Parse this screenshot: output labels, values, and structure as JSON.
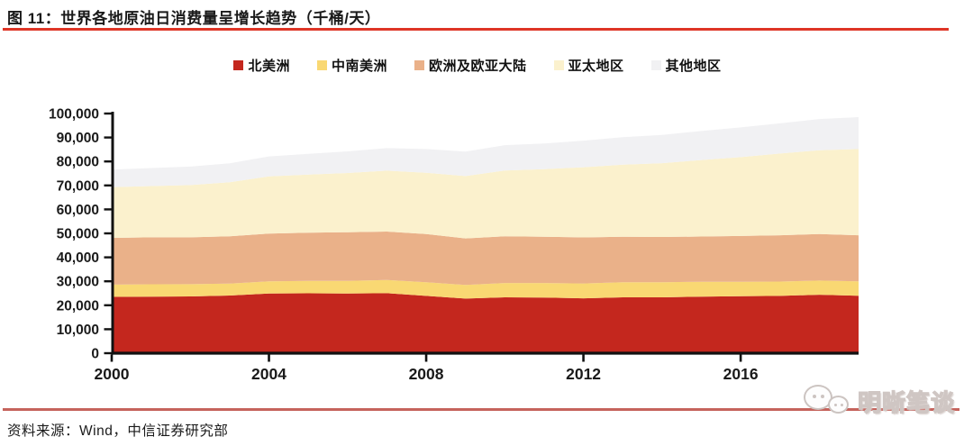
{
  "title": "图 11：世界各地原油日消费量呈增长趋势（千桶/天）",
  "source_note": "资料来源：Wind，中信证券研究部",
  "watermark": {
    "text": "明晰笔谈",
    "icon": "wechat-chat-bubbles-icon"
  },
  "accents": {
    "title_rule": "#DE3526",
    "footer_rule": "#C5635C",
    "axis_color": "#111111",
    "text_color": "#1A1A1A"
  },
  "chart_data": {
    "type": "area",
    "stacked": true,
    "title": "世界各地原油日消费量呈增长趋势（千桶/天）",
    "xlabel": "",
    "ylabel": "",
    "grid": false,
    "legend_position": "top-center",
    "ylim": [
      0,
      100000
    ],
    "ytick_step": 10000,
    "ytick_labels": [
      "0",
      "10,000",
      "20,000",
      "30,000",
      "40,000",
      "50,000",
      "60,000",
      "70,000",
      "80,000",
      "90,000",
      "100,000"
    ],
    "x": [
      2000,
      2001,
      2002,
      2003,
      2004,
      2005,
      2006,
      2007,
      2008,
      2009,
      2010,
      2011,
      2012,
      2013,
      2014,
      2015,
      2016,
      2017,
      2018,
      2019
    ],
    "xtick_years": [
      2000,
      2004,
      2008,
      2012,
      2016
    ],
    "xtick_labels": [
      "2000",
      "2004",
      "2008",
      "2012",
      "2016"
    ],
    "series": [
      {
        "key": "north-america",
        "name": "北美洲",
        "color": "#C4271E",
        "values": [
          23500,
          23600,
          23700,
          24050,
          24900,
          25000,
          24900,
          25050,
          23900,
          22800,
          23300,
          23200,
          22900,
          23300,
          23300,
          23600,
          23800,
          23900,
          24400,
          24000
        ]
      },
      {
        "key": "central-south-america",
        "name": "中南美洲",
        "color": "#F9D873",
        "values": [
          5100,
          5150,
          5100,
          5000,
          5100,
          5200,
          5300,
          5500,
          5700,
          5700,
          6000,
          6100,
          6200,
          6300,
          6300,
          6200,
          6000,
          6000,
          5900,
          6000
        ]
      },
      {
        "key": "europe-eurasia",
        "name": "欧洲及欧亚大陆",
        "color": "#EAB189",
        "values": [
          19500,
          19600,
          19550,
          19700,
          19900,
          20100,
          20300,
          20200,
          20100,
          19400,
          19500,
          19300,
          19200,
          19000,
          18900,
          18900,
          19100,
          19300,
          19400,
          19200
        ]
      },
      {
        "key": "asia-pacific",
        "name": "亚太地区",
        "color": "#FBF1CD",
        "values": [
          21200,
          21400,
          21800,
          22600,
          23900,
          24200,
          24700,
          25400,
          25600,
          26000,
          27400,
          28200,
          29300,
          30100,
          30800,
          31900,
          32900,
          34100,
          35000,
          36000
        ]
      },
      {
        "key": "other-regions",
        "name": "其他地区",
        "color": "#F1F1F3",
        "values": [
          7300,
          7500,
          7700,
          7900,
          8300,
          8700,
          9000,
          9400,
          9900,
          10200,
          10600,
          10700,
          11100,
          11400,
          11800,
          12100,
          12400,
          12600,
          13000,
          13300
        ]
      }
    ]
  }
}
